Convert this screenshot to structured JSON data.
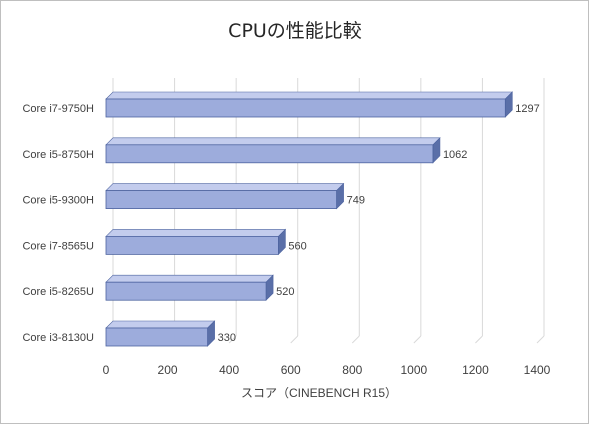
{
  "chart_data": {
    "type": "bar",
    "orientation": "horizontal",
    "style": "3d-clustered",
    "title": "CPUの性能比較",
    "xlabel": "スコア（CINEBENCH R15）",
    "ylabel": "",
    "categories": [
      "Core i7-9750H",
      "Core i5-8750H",
      "Core i5-9300H",
      "Core i7-8565U",
      "Core i5-8265U",
      "Core i3-8130U"
    ],
    "values": [
      1297,
      1062,
      749,
      560,
      520,
      330
    ],
    "data_labels": [
      "1297",
      "1062",
      "749",
      "560",
      "520",
      "330"
    ],
    "xlim": [
      0,
      1400
    ],
    "x_ticks": [
      0,
      200,
      400,
      600,
      800,
      1000,
      1200,
      1400
    ],
    "x_tick_labels": [
      "0",
      "200",
      "400",
      "600",
      "800",
      "1000",
      "1200",
      "1400"
    ],
    "grid": "vertical",
    "legend": "none",
    "colors": {
      "bar_front": "#9dacdc",
      "bar_top": "#c3cced",
      "bar_side": "#5a6fa8",
      "bar_edge": "#4e64a0",
      "grid": "#d9d9d9",
      "text": "#404040",
      "title": "#262626"
    }
  }
}
